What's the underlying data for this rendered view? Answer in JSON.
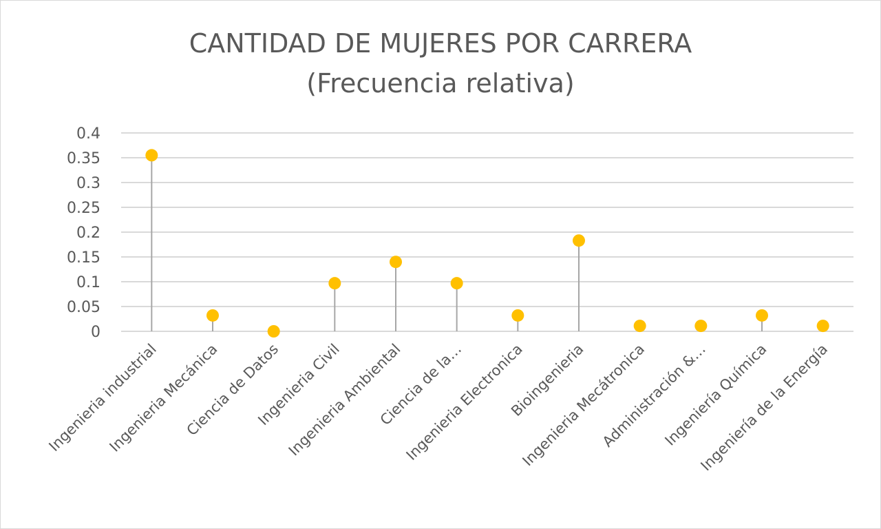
{
  "chart_data": {
    "type": "scatter",
    "title_line1": "CANTIDAD DE MUJERES POR CARRERA",
    "title_line2": "(Frecuencia relativa)",
    "categories": [
      "Ingenieria industrial",
      "Ingenieria Mecánica",
      "Ciencia de Datos",
      "Ingenieria Civil",
      "Ingenieria Ambiental",
      "Ciencia de la…",
      "Ingenieria Electronica",
      "Bioingenieria",
      "Ingenieria Mecátronica",
      "Administración &…",
      "Ingeniería Química",
      "Ingeniería de la Energía"
    ],
    "values": [
      0.355,
      0.032,
      0.0,
      0.097,
      0.14,
      0.097,
      0.032,
      0.183,
      0.011,
      0.011,
      0.032,
      0.011
    ],
    "ylim": [
      0,
      0.4
    ],
    "y_ticks": [
      "0",
      "0.05",
      "0.1",
      "0.15",
      "0.2",
      "0.25",
      "0.3",
      "0.35",
      "0.4"
    ],
    "grid": true,
    "legend": "none",
    "marker_color": "#FFC000",
    "stem_color": "#A6A6A6",
    "grid_color": "#D9D9D9"
  }
}
